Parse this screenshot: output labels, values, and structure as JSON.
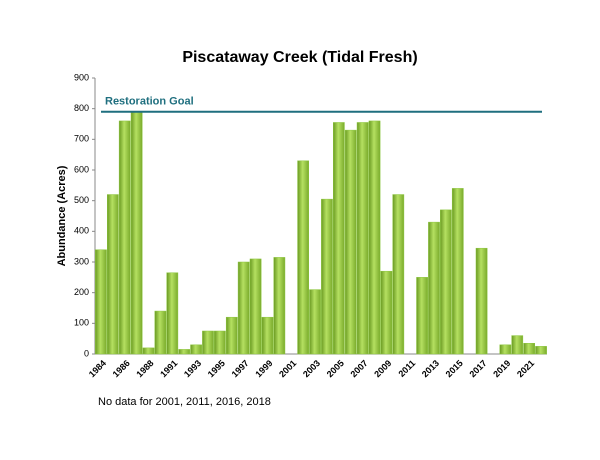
{
  "chart_data": {
    "type": "bar",
    "title": "Piscataway Creek (Tidal Fresh)",
    "y_label": "Abundance (Acres)",
    "footnote": "No data for 2001, 2011, 2016, 2018",
    "categories": [
      "1984",
      null,
      "1986",
      null,
      "1988",
      null,
      "1991",
      null,
      "1993",
      null,
      "1995",
      null,
      "1997",
      null,
      "1999",
      null,
      "2001",
      null,
      "2003",
      null,
      "2005",
      null,
      "2007",
      null,
      "2009",
      null,
      "2011",
      null,
      "2013",
      null,
      "2015",
      null,
      "2017",
      null,
      "2019",
      null,
      "2021",
      null
    ],
    "values": [
      340,
      520,
      760,
      790,
      20,
      140,
      265,
      15,
      30,
      75,
      75,
      120,
      300,
      310,
      120,
      315,
      null,
      630,
      210,
      505,
      755,
      730,
      755,
      760,
      270,
      520,
      null,
      250,
      430,
      470,
      540,
      null,
      345,
      null,
      30,
      60,
      35,
      25
    ],
    "color": "#8cc63f",
    "goal": {
      "label": "Restoration Goal",
      "value": 790,
      "color": "#1f6f7f"
    },
    "ylim": [
      0,
      900
    ],
    "yticks": [
      0,
      100,
      200,
      300,
      400,
      500,
      600,
      700,
      800,
      900
    ],
    "grid": false
  }
}
